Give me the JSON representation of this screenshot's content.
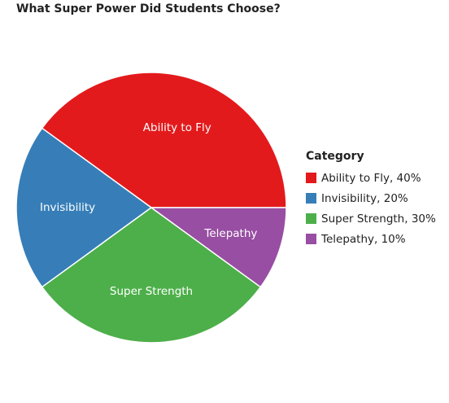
{
  "chart_data": {
    "type": "pie",
    "title": "What Super Power Did Students Choose?",
    "legend_title": "Category",
    "legend_position": "right",
    "slices": [
      {
        "label": "Ability to Fly",
        "value": 40,
        "legend_label": "Ability to Fly, 40%",
        "color": "#e31a1c"
      },
      {
        "label": "Invisibility",
        "value": 20,
        "legend_label": "Invisibility, 20%",
        "color": "#377eb8"
      },
      {
        "label": "Super Strength",
        "value": 30,
        "legend_label": "Super Strength, 30%",
        "color": "#4daf4a"
      },
      {
        "label": "Telepathy",
        "value": 10,
        "legend_label": "Telepathy, 10%",
        "color": "#984ea3"
      }
    ]
  }
}
